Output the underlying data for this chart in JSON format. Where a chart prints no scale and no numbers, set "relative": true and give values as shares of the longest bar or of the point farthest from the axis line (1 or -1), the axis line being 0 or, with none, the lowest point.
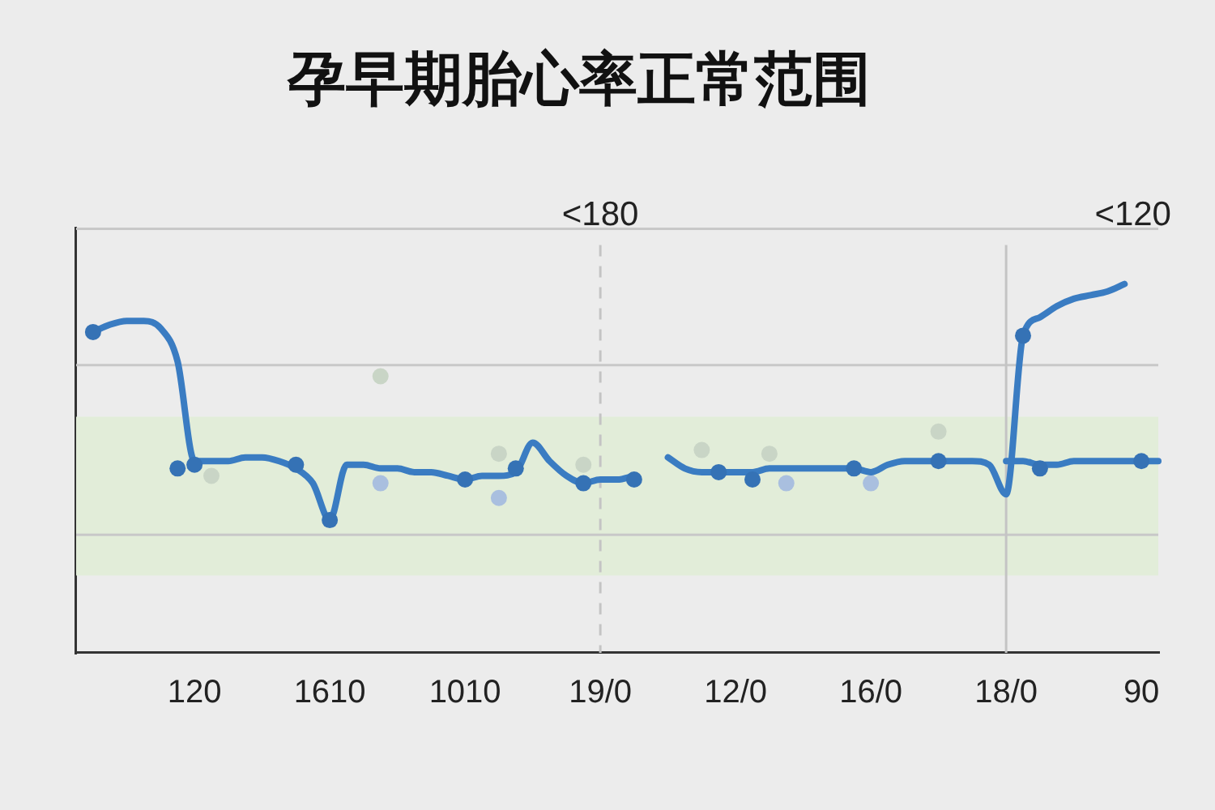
{
  "chart_data": {
    "type": "line",
    "title": "孕早期胎心率正常范围",
    "categories": [
      null,
      null,
      null,
      null,
      null,
      null,
      null,
      "120",
      null,
      null,
      null,
      null,
      null,
      null,
      null,
      "1610",
      null,
      null,
      null,
      null,
      null,
      null,
      null,
      "1010",
      null,
      null,
      null,
      null,
      null,
      null,
      null,
      "19/0",
      null,
      null,
      null,
      null,
      null,
      null,
      null,
      "12/0",
      null,
      null,
      null,
      null,
      null,
      null,
      null,
      "16/0",
      null,
      null,
      null,
      null,
      null,
      null,
      null,
      "18/0",
      null,
      null,
      null,
      null,
      null,
      null,
      null,
      "90",
      null
    ],
    "relative": true,
    "marker": "circle",
    "series": [
      {
        "type": "scatter",
        "color": "#c9d5c6",
        "values": [
          null,
          null,
          null,
          null,
          null,
          null,
          null,
          null,
          0.48,
          null,
          null,
          null,
          null,
          null,
          null,
          null,
          null,
          null,
          0.75,
          null,
          null,
          null,
          null,
          null,
          null,
          0.54,
          null,
          null,
          null,
          null,
          0.51,
          null,
          null,
          null,
          null,
          null,
          null,
          0.55,
          null,
          null,
          null,
          0.54,
          null,
          null,
          null,
          null,
          null,
          null,
          null,
          null,
          null,
          0.6,
          null,
          null,
          null,
          null,
          null,
          null,
          null,
          null,
          null,
          null,
          null,
          null,
          null
        ]
      },
      {
        "type": "scatter",
        "color": "#a9bfdf",
        "values": [
          null,
          null,
          null,
          null,
          null,
          null,
          null,
          null,
          null,
          null,
          null,
          null,
          null,
          null,
          null,
          null,
          null,
          null,
          0.46,
          null,
          null,
          null,
          null,
          null,
          null,
          0.42,
          null,
          null,
          null,
          null,
          null,
          null,
          null,
          null,
          null,
          null,
          null,
          null,
          null,
          null,
          null,
          null,
          0.46,
          null,
          null,
          null,
          null,
          0.46,
          null,
          null,
          null,
          null,
          null,
          null,
          null,
          null,
          null,
          null,
          null,
          null,
          null,
          null,
          null,
          null,
          null
        ]
      },
      {
        "marker": "none",
        "color": "#3a7cc2",
        "values": [
          null,
          0.87,
          0.89,
          0.9,
          0.9,
          0.88,
          0.79,
          0.52,
          0.52,
          0.52,
          0.53,
          0.53,
          0.52,
          0.5,
          0.46,
          0.36,
          0.51,
          0.51,
          0.5,
          0.5,
          0.49,
          0.49,
          0.48,
          0.47,
          0.48,
          0.48,
          0.49,
          0.57,
          0.52,
          0.48,
          0.46,
          0.47,
          0.47,
          0.48,
          null,
          0.53,
          0.5,
          0.49,
          0.49,
          0.49,
          0.49,
          0.5,
          0.5,
          0.5,
          0.5,
          0.5,
          0.5,
          0.49,
          0.51,
          0.52,
          0.52,
          0.52,
          0.52,
          0.52,
          0.51,
          0.43,
          0.86,
          0.91,
          0.94,
          0.96,
          0.97,
          0.98,
          1,
          null,
          null
        ]
      },
      {
        "marker": "none",
        "color": "#3a7cc2",
        "values": [
          null,
          null,
          null,
          null,
          null,
          null,
          null,
          null,
          null,
          null,
          null,
          null,
          null,
          null,
          null,
          null,
          null,
          null,
          null,
          null,
          null,
          null,
          null,
          null,
          null,
          null,
          null,
          null,
          null,
          null,
          null,
          null,
          null,
          null,
          null,
          null,
          null,
          null,
          null,
          null,
          null,
          null,
          null,
          null,
          null,
          null,
          null,
          null,
          null,
          null,
          null,
          null,
          null,
          null,
          null,
          0.52,
          0.52,
          0.51,
          0.51,
          0.52,
          0.52,
          0.52,
          0.52,
          0.52,
          0.52
        ]
      },
      {
        "type": "scatter",
        "color": "#3572b5",
        "values": [
          null,
          0.87,
          null,
          null,
          null,
          null,
          0.5,
          0.51,
          null,
          null,
          null,
          null,
          null,
          0.51,
          null,
          0.36,
          null,
          null,
          null,
          null,
          null,
          null,
          null,
          0.47,
          null,
          null,
          0.5,
          null,
          null,
          null,
          0.46,
          null,
          null,
          0.47,
          null,
          null,
          null,
          null,
          0.49,
          null,
          0.47,
          null,
          null,
          null,
          null,
          null,
          0.5,
          null,
          null,
          null,
          null,
          0.52,
          null,
          null,
          null,
          null,
          0.86,
          0.5,
          null,
          null,
          null,
          null,
          null,
          0.52,
          null
        ]
      }
    ],
    "ref_lines": [
      {
        "axis": "y",
        "value": 1.15,
        "color": "#c8c8c8"
      },
      {
        "axis": "y",
        "value": 0.78,
        "color": "#c8c8c8"
      },
      {
        "axis": "y",
        "value": 0.32,
        "color": "#c8c8c8"
      },
      {
        "axis": "x",
        "value": "19/0",
        "label": "<180",
        "color": "#c4c4c4",
        "line_style": "dashed"
      },
      {
        "axis": "x",
        "value": "18/0",
        "color": "#c4c4c4"
      }
    ],
    "bands": [
      {
        "axis": "y",
        "from": 0.21,
        "to": 0.64,
        "color": "#e2edd9"
      }
    ],
    "annotations": [
      "<120"
    ]
  }
}
